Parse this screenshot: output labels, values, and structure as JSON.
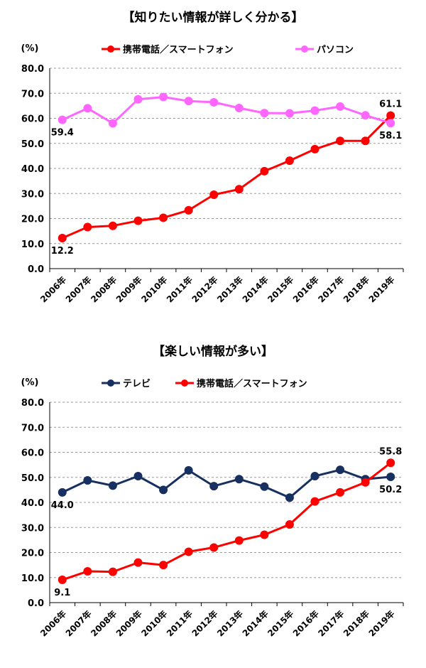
{
  "chart_data": [
    {
      "type": "line",
      "title": "【知りたい情報が詳しく分かる】",
      "unit_label": "(%)",
      "categories": [
        "2006年",
        "2007年",
        "2008年",
        "2009年",
        "2010年",
        "2011年",
        "2012年",
        "2013年",
        "2014年",
        "2015年",
        "2016年",
        "2017年",
        "2018年",
        "2019年"
      ],
      "ylim": [
        0,
        80
      ],
      "yticks": [
        "0.0",
        "10.0",
        "20.0",
        "30.0",
        "40.0",
        "50.0",
        "60.0",
        "70.0",
        "80.0"
      ],
      "grid": true,
      "legend_position": "top",
      "series": [
        {
          "name": "携帯電話／スマートフォン",
          "color": "#ff0000",
          "values": [
            12.2,
            16.6,
            17.1,
            19.1,
            20.3,
            23.3,
            29.5,
            31.7,
            38.9,
            43.1,
            47.7,
            51.0,
            51.0,
            61.1
          ],
          "labels": [
            {
              "index": 0,
              "text": "12.2",
              "pos": "below"
            },
            {
              "index": 13,
              "text": "61.1",
              "pos": "above"
            }
          ]
        },
        {
          "name": "パソコン",
          "color": "#ff66ff",
          "values": [
            59.4,
            64.0,
            58.0,
            67.6,
            68.5,
            66.9,
            66.4,
            64.1,
            62.1,
            62.0,
            63.1,
            64.7,
            61.2,
            58.1
          ],
          "labels": [
            {
              "index": 0,
              "text": "59.4",
              "pos": "below"
            },
            {
              "index": 13,
              "text": "58.1",
              "pos": "below"
            }
          ]
        }
      ]
    },
    {
      "type": "line",
      "title": "【楽しい情報が多い】",
      "unit_label": "(%)",
      "categories": [
        "2006年",
        "2007年",
        "2008年",
        "2009年",
        "2010年",
        "2011年",
        "2012年",
        "2013年",
        "2014年",
        "2015年",
        "2016年",
        "2017年",
        "2018年",
        "2019年"
      ],
      "ylim": [
        0,
        80
      ],
      "yticks": [
        "0.0",
        "10.0",
        "20.0",
        "30.0",
        "40.0",
        "50.0",
        "60.0",
        "70.0",
        "80.0"
      ],
      "grid": true,
      "legend_position": "top",
      "series": [
        {
          "name": "テレビ",
          "color": "#17305f",
          "values": [
            44.0,
            48.8,
            46.7,
            50.5,
            45.0,
            52.8,
            46.5,
            49.3,
            46.3,
            41.9,
            50.5,
            53.0,
            49.3,
            50.2
          ],
          "labels": [
            {
              "index": 0,
              "text": "44.0",
              "pos": "below"
            },
            {
              "index": 13,
              "text": "50.2",
              "pos": "below"
            }
          ]
        },
        {
          "name": "携帯電話／スマートフォン",
          "color": "#ff0000",
          "values": [
            9.1,
            12.5,
            12.3,
            16.0,
            15.0,
            20.3,
            22.0,
            24.8,
            27.1,
            31.2,
            40.4,
            44.0,
            48.0,
            55.8
          ],
          "labels": [
            {
              "index": 0,
              "text": "9.1",
              "pos": "below"
            },
            {
              "index": 13,
              "text": "55.8",
              "pos": "above"
            }
          ]
        }
      ]
    }
  ]
}
